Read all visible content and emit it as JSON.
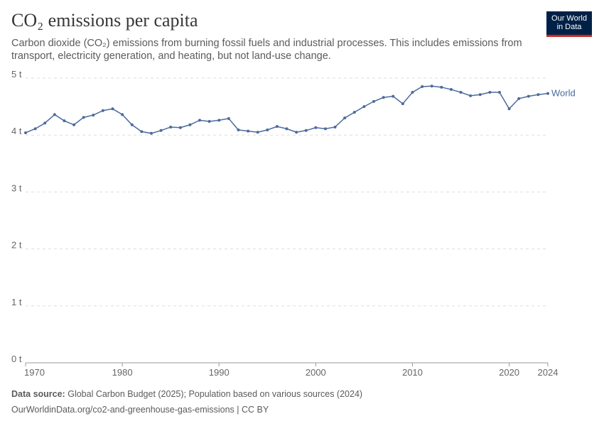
{
  "chart_data": {
    "type": "line",
    "title": "CO₂ emissions per capita",
    "subtitle": "Carbon dioxide (CO₂) emissions from burning fossil fuels and industrial processes. This includes emissions from transport, electricity generation, and heating, but not land-use change.",
    "logo": [
      "Our World",
      "in Data"
    ],
    "source_label": "Data source:",
    "source": "Global Carbon Budget (2025); Population based on various sources (2024)",
    "footer": "OurWorldinData.org/co2-and-greenhouse-gas-emissions | CC BY",
    "x": [
      1970,
      1971,
      1972,
      1973,
      1974,
      1975,
      1976,
      1977,
      1978,
      1979,
      1980,
      1981,
      1982,
      1983,
      1984,
      1985,
      1986,
      1987,
      1988,
      1989,
      1990,
      1991,
      1992,
      1993,
      1994,
      1995,
      1996,
      1997,
      1998,
      1999,
      2000,
      2001,
      2002,
      2003,
      2004,
      2005,
      2006,
      2007,
      2008,
      2009,
      2010,
      2011,
      2012,
      2013,
      2014,
      2015,
      2016,
      2017,
      2018,
      2019,
      2020,
      2021,
      2022,
      2023,
      2024
    ],
    "series": [
      {
        "name": "World",
        "color": "#4c6a9c",
        "values": [
          4.04,
          4.11,
          4.21,
          4.36,
          4.25,
          4.18,
          4.31,
          4.35,
          4.43,
          4.46,
          4.36,
          4.18,
          4.06,
          4.03,
          4.08,
          4.14,
          4.13,
          4.18,
          4.26,
          4.24,
          4.26,
          4.29,
          4.09,
          4.07,
          4.05,
          4.09,
          4.15,
          4.11,
          4.05,
          4.08,
          4.13,
          4.11,
          4.14,
          4.3,
          4.4,
          4.5,
          4.59,
          4.66,
          4.68,
          4.55,
          4.75,
          4.85,
          4.86,
          4.84,
          4.8,
          4.75,
          4.69,
          4.71,
          4.75,
          4.75,
          4.46,
          4.64,
          4.68,
          4.71,
          4.73
        ]
      }
    ],
    "xlim": [
      1970,
      2024
    ],
    "xticks": [
      1970,
      1980,
      1990,
      2000,
      2010,
      2020,
      2024
    ],
    "ylim": [
      0,
      5
    ],
    "yticks": [
      {
        "value": 0,
        "label": "0 t"
      },
      {
        "value": 1,
        "label": "1 t"
      },
      {
        "value": 2,
        "label": "2 t"
      },
      {
        "value": 3,
        "label": "3 t"
      },
      {
        "value": 4,
        "label": "4 t"
      },
      {
        "value": 5,
        "label": "5 t"
      }
    ],
    "grid": true
  }
}
